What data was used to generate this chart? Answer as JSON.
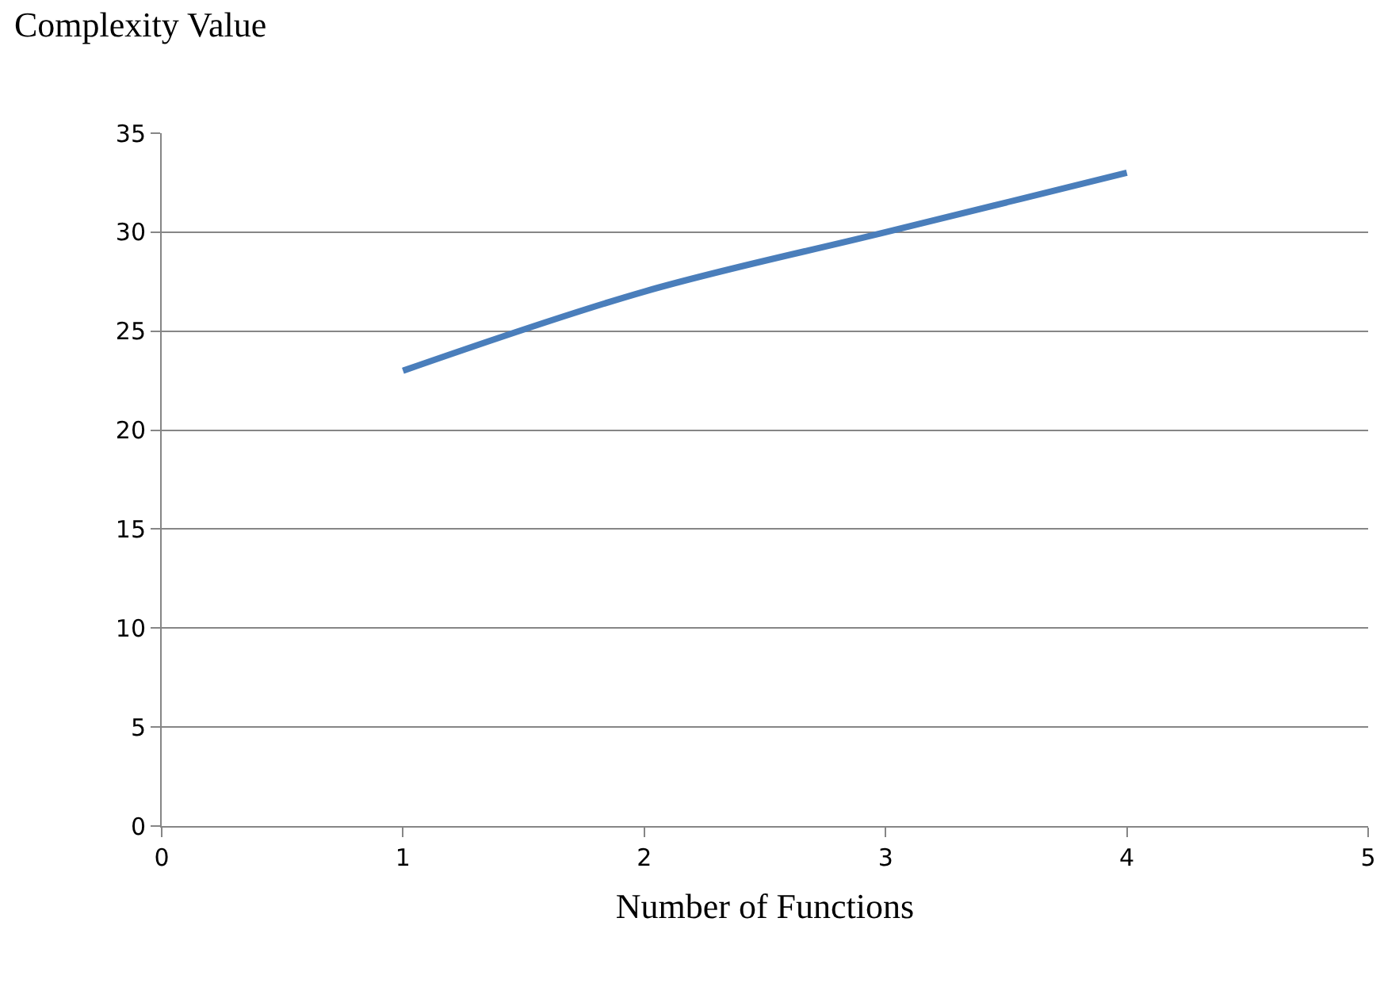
{
  "chart_data": {
    "type": "line",
    "xlabel": "Number of Functions",
    "ylabel": "Complexity Value",
    "x": [
      1,
      2,
      3,
      4
    ],
    "series": [
      {
        "color": "#4a7ebb",
        "values": [
          23,
          27,
          30,
          33
        ]
      }
    ],
    "xlim": [
      0,
      5
    ],
    "xticks": [
      0,
      1,
      2,
      3,
      4,
      5
    ],
    "ylim": [
      0,
      35
    ],
    "yticks": [
      0,
      5,
      10,
      15,
      20,
      25,
      30,
      35
    ],
    "grid": "y",
    "marker": "none",
    "line_style": "solid"
  }
}
